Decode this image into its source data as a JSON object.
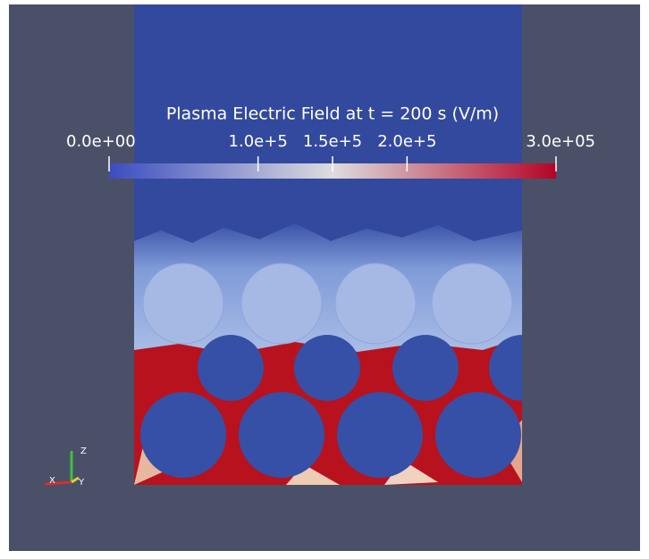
{
  "colorbar": {
    "title": "Plasma Electric Field at t = 200 s (V/m)",
    "range": [
      0,
      300000
    ],
    "ticks": [
      {
        "value": 0,
        "label": "0.0e+00"
      },
      {
        "value": 100000,
        "label": "1.0e+5"
      },
      {
        "value": 150000,
        "label": "1.5e+5"
      },
      {
        "value": 200000,
        "label": "2.0e+5"
      },
      {
        "value": 300000,
        "label": "3.0e+05"
      }
    ]
  },
  "axes": {
    "x": "X",
    "y": "Y",
    "z": "Z"
  }
}
